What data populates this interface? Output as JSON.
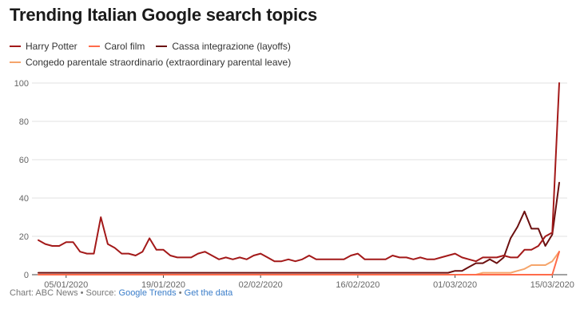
{
  "chart_data": {
    "type": "line",
    "title": "Trending Italian Google search topics",
    "xlabel": "",
    "ylabel": "",
    "ylim": [
      0,
      100
    ],
    "yticks": [
      0,
      20,
      40,
      60,
      80,
      100
    ],
    "xtick_labels": [
      "05/01/2020",
      "19/01/2020",
      "02/02/2020",
      "16/02/2020",
      "01/03/2020",
      "15/03/2020"
    ],
    "x": [
      "01/01/2020",
      "02/01/2020",
      "03/01/2020",
      "04/01/2020",
      "05/01/2020",
      "06/01/2020",
      "07/01/2020",
      "08/01/2020",
      "09/01/2020",
      "10/01/2020",
      "11/01/2020",
      "12/01/2020",
      "13/01/2020",
      "14/01/2020",
      "15/01/2020",
      "16/01/2020",
      "17/01/2020",
      "18/01/2020",
      "19/01/2020",
      "20/01/2020",
      "21/01/2020",
      "22/01/2020",
      "23/01/2020",
      "24/01/2020",
      "25/01/2020",
      "26/01/2020",
      "27/01/2020",
      "28/01/2020",
      "29/01/2020",
      "30/01/2020",
      "31/01/2020",
      "01/02/2020",
      "02/02/2020",
      "03/02/2020",
      "04/02/2020",
      "05/02/2020",
      "06/02/2020",
      "07/02/2020",
      "08/02/2020",
      "09/02/2020",
      "10/02/2020",
      "11/02/2020",
      "12/02/2020",
      "13/02/2020",
      "14/02/2020",
      "15/02/2020",
      "16/02/2020",
      "17/02/2020",
      "18/02/2020",
      "19/02/2020",
      "20/02/2020",
      "21/02/2020",
      "22/02/2020",
      "23/02/2020",
      "24/02/2020",
      "25/02/2020",
      "26/02/2020",
      "27/02/2020",
      "28/02/2020",
      "29/02/2020",
      "01/03/2020",
      "02/03/2020",
      "03/03/2020",
      "04/03/2020",
      "05/03/2020",
      "06/03/2020",
      "07/03/2020",
      "08/03/2020",
      "09/03/2020",
      "10/03/2020",
      "11/03/2020",
      "12/03/2020",
      "13/03/2020",
      "14/03/2020",
      "15/03/2020",
      "16/03/2020"
    ],
    "series": [
      {
        "name": "Harry Potter",
        "color": "#a31919",
        "values": [
          18,
          16,
          15,
          15,
          17,
          17,
          12,
          11,
          11,
          30,
          16,
          14,
          11,
          11,
          10,
          12,
          19,
          13,
          13,
          10,
          9,
          9,
          9,
          11,
          12,
          10,
          8,
          9,
          8,
          9,
          8,
          10,
          11,
          9,
          7,
          7,
          8,
          7,
          8,
          10,
          8,
          8,
          8,
          8,
          8,
          10,
          11,
          8,
          8,
          8,
          8,
          10,
          9,
          9,
          8,
          9,
          8,
          8,
          9,
          10,
          11,
          9,
          8,
          7,
          9,
          9,
          9,
          10,
          9,
          9,
          13,
          13,
          15,
          20,
          22,
          100
        ]
      },
      {
        "name": "Carol film",
        "color": "#ff6b4a",
        "values": [
          0,
          0,
          0,
          0,
          0,
          0,
          0,
          0,
          0,
          0,
          0,
          0,
          0,
          0,
          0,
          0,
          0,
          0,
          0,
          0,
          0,
          0,
          0,
          0,
          0,
          0,
          0,
          0,
          0,
          0,
          0,
          0,
          0,
          0,
          0,
          0,
          0,
          0,
          0,
          0,
          0,
          0,
          0,
          0,
          0,
          0,
          0,
          0,
          0,
          0,
          0,
          0,
          0,
          0,
          0,
          0,
          0,
          0,
          0,
          0,
          0,
          0,
          0,
          0,
          0,
          0,
          0,
          0,
          0,
          0,
          0,
          0,
          0,
          0,
          0,
          12
        ]
      },
      {
        "name": "Cassa integrazione (layoffs)",
        "color": "#6b0f0f",
        "values": [
          1,
          1,
          1,
          1,
          1,
          1,
          1,
          1,
          1,
          1,
          1,
          1,
          1,
          1,
          1,
          1,
          1,
          1,
          1,
          1,
          1,
          1,
          1,
          1,
          1,
          1,
          1,
          1,
          1,
          1,
          1,
          1,
          1,
          1,
          1,
          1,
          1,
          1,
          1,
          1,
          1,
          1,
          1,
          1,
          1,
          1,
          1,
          1,
          1,
          1,
          1,
          1,
          1,
          1,
          1,
          1,
          1,
          1,
          1,
          1,
          2,
          2,
          4,
          6,
          6,
          8,
          6,
          9,
          19,
          25,
          33,
          24,
          24,
          15,
          21,
          48
        ]
      },
      {
        "name": "Congedo parentale straordinario (extraordinary parental leave)",
        "color": "#f5a56b",
        "values": [
          0,
          0,
          0,
          0,
          0,
          0,
          0,
          0,
          0,
          0,
          0,
          0,
          0,
          0,
          0,
          0,
          0,
          0,
          0,
          0,
          0,
          0,
          0,
          0,
          0,
          0,
          0,
          0,
          0,
          0,
          0,
          0,
          0,
          0,
          0,
          0,
          0,
          0,
          0,
          0,
          0,
          0,
          0,
          0,
          0,
          0,
          0,
          0,
          0,
          0,
          0,
          0,
          0,
          0,
          0,
          0,
          0,
          0,
          0,
          0,
          0,
          0,
          0,
          0,
          1,
          1,
          1,
          1,
          1,
          2,
          3,
          5,
          5,
          5,
          7,
          12
        ]
      }
    ],
    "grid": true,
    "legend_placement": "top-left"
  },
  "footer": {
    "prefix": "Chart: ABC News • Source: ",
    "source_link": "Google Trends",
    "separator": " • ",
    "data_link": "Get the data"
  }
}
